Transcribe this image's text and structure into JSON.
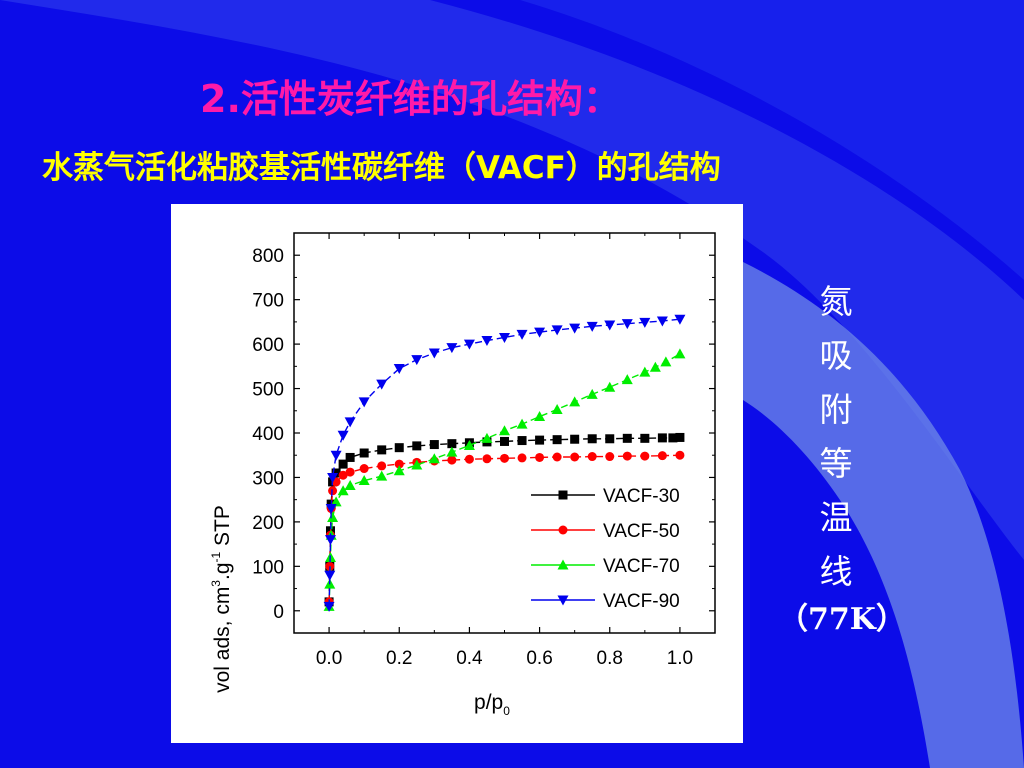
{
  "slide": {
    "title": "2.活性炭纤维的孔结构：",
    "subtitle": "水蒸气活化粘胶基活性碳纤维（VACF）的孔结构",
    "side_caption": [
      "氮",
      "吸",
      "附",
      "等",
      "温",
      "线"
    ],
    "side_caption_unit": "（77K）",
    "colors": {
      "background": "#0c0ce8",
      "title": "#ff1aa8",
      "subtitle": "#ffff00",
      "caption": "#ffffff"
    }
  },
  "chart_data": {
    "type": "line",
    "title": "",
    "xlabel": "p/p",
    "xlabel_sub": "0",
    "ylabel": "vol ads, cm",
    "ylabel_sup1": "3",
    "ylabel_mid": ".g",
    "ylabel_sup2": "-1",
    "ylabel_end": " STP",
    "xlim": [
      -0.1,
      1.1
    ],
    "ylim": [
      -50,
      850
    ],
    "xticks": [
      "0.0",
      "0.2",
      "0.4",
      "0.6",
      "0.8",
      "1.0"
    ],
    "xtick_values": [
      0,
      0.2,
      0.4,
      0.6,
      0.8,
      1.0
    ],
    "yticks": [
      "0",
      "100",
      "200",
      "300",
      "400",
      "500",
      "600",
      "700",
      "800"
    ],
    "ytick_values": [
      0,
      100,
      200,
      300,
      400,
      500,
      600,
      700,
      800
    ],
    "grid": false,
    "legend_position": "bottom-right",
    "series": [
      {
        "name": "VACF-30",
        "color": "#000000",
        "marker": "square",
        "points": [
          [
            0.0,
            20
          ],
          [
            0.002,
            100
          ],
          [
            0.004,
            180
          ],
          [
            0.006,
            240
          ],
          [
            0.01,
            290
          ],
          [
            0.02,
            310
          ],
          [
            0.04,
            330
          ],
          [
            0.06,
            345
          ],
          [
            0.1,
            355
          ],
          [
            0.15,
            362
          ],
          [
            0.2,
            367
          ],
          [
            0.25,
            371
          ],
          [
            0.3,
            374
          ],
          [
            0.35,
            376
          ],
          [
            0.4,
            378
          ],
          [
            0.45,
            380
          ],
          [
            0.5,
            381
          ],
          [
            0.55,
            383
          ],
          [
            0.6,
            384
          ],
          [
            0.65,
            385
          ],
          [
            0.7,
            386
          ],
          [
            0.75,
            387
          ],
          [
            0.8,
            387
          ],
          [
            0.85,
            388
          ],
          [
            0.9,
            388
          ],
          [
            0.95,
            389
          ],
          [
            0.98,
            389
          ],
          [
            1.0,
            390
          ]
        ]
      },
      {
        "name": "VACF-50",
        "color": "#ff0000",
        "marker": "circle",
        "points": [
          [
            0.0,
            20
          ],
          [
            0.002,
            100
          ],
          [
            0.004,
            170
          ],
          [
            0.006,
            230
          ],
          [
            0.01,
            270
          ],
          [
            0.02,
            290
          ],
          [
            0.04,
            305
          ],
          [
            0.06,
            312
          ],
          [
            0.1,
            320
          ],
          [
            0.15,
            326
          ],
          [
            0.2,
            330
          ],
          [
            0.25,
            334
          ],
          [
            0.3,
            337
          ],
          [
            0.35,
            339
          ],
          [
            0.4,
            341
          ],
          [
            0.45,
            342
          ],
          [
            0.5,
            343
          ],
          [
            0.55,
            344
          ],
          [
            0.6,
            345
          ],
          [
            0.65,
            346
          ],
          [
            0.7,
            346
          ],
          [
            0.75,
            347
          ],
          [
            0.8,
            347
          ],
          [
            0.85,
            348
          ],
          [
            0.9,
            348
          ],
          [
            0.95,
            349
          ],
          [
            1.0,
            350
          ]
        ]
      },
      {
        "name": "VACF-70",
        "color": "#00ee00",
        "marker": "triangle-up",
        "points": [
          [
            0.0,
            10
          ],
          [
            0.002,
            60
          ],
          [
            0.004,
            120
          ],
          [
            0.006,
            170
          ],
          [
            0.01,
            210
          ],
          [
            0.02,
            245
          ],
          [
            0.04,
            270
          ],
          [
            0.06,
            282
          ],
          [
            0.1,
            293
          ],
          [
            0.15,
            303
          ],
          [
            0.2,
            315
          ],
          [
            0.25,
            328
          ],
          [
            0.3,
            342
          ],
          [
            0.35,
            357
          ],
          [
            0.4,
            372
          ],
          [
            0.45,
            388
          ],
          [
            0.5,
            405
          ],
          [
            0.55,
            420
          ],
          [
            0.6,
            437
          ],
          [
            0.65,
            453
          ],
          [
            0.7,
            470
          ],
          [
            0.75,
            487
          ],
          [
            0.8,
            503
          ],
          [
            0.85,
            520
          ],
          [
            0.9,
            537
          ],
          [
            0.93,
            548
          ],
          [
            0.96,
            560
          ],
          [
            1.0,
            578
          ]
        ]
      },
      {
        "name": "VACF-90",
        "color": "#0000ee",
        "marker": "triangle-down",
        "points": [
          [
            0.0,
            10
          ],
          [
            0.002,
            80
          ],
          [
            0.004,
            160
          ],
          [
            0.006,
            230
          ],
          [
            0.01,
            300
          ],
          [
            0.02,
            350
          ],
          [
            0.04,
            395
          ],
          [
            0.06,
            425
          ],
          [
            0.1,
            470
          ],
          [
            0.15,
            510
          ],
          [
            0.2,
            545
          ],
          [
            0.25,
            565
          ],
          [
            0.3,
            580
          ],
          [
            0.35,
            592
          ],
          [
            0.4,
            600
          ],
          [
            0.45,
            608
          ],
          [
            0.5,
            615
          ],
          [
            0.55,
            622
          ],
          [
            0.6,
            627
          ],
          [
            0.65,
            632
          ],
          [
            0.7,
            636
          ],
          [
            0.75,
            640
          ],
          [
            0.8,
            643
          ],
          [
            0.85,
            646
          ],
          [
            0.9,
            649
          ],
          [
            0.95,
            652
          ],
          [
            1.0,
            656
          ]
        ]
      }
    ]
  }
}
